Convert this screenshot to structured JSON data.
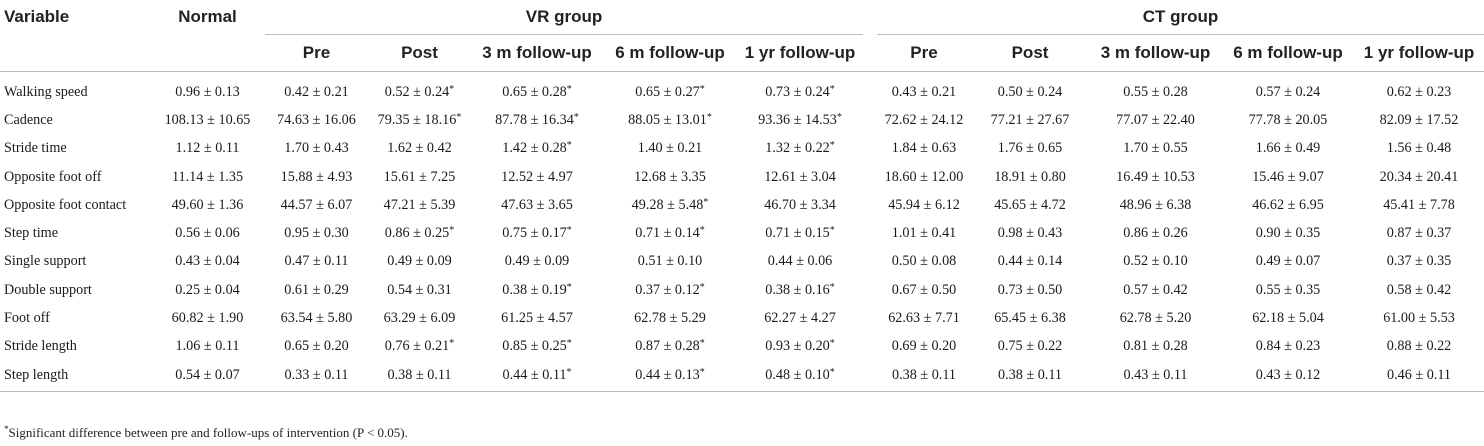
{
  "header": {
    "variable": "Variable",
    "normal": "Normal",
    "vr_group": "VR group",
    "ct_group": "CT group",
    "sub": [
      "Pre",
      "Post",
      "3 m follow-up",
      "6 m follow-up",
      "1 yr follow-up"
    ]
  },
  "rows": [
    {
      "name": "Walking speed",
      "normal": "0.96 ± 0.13",
      "vr": [
        "0.42 ± 0.21",
        "0.52 ± 0.24*",
        "0.65 ± 0.28*",
        "0.65 ± 0.27*",
        "0.73 ± 0.24*"
      ],
      "ct": [
        "0.43 ± 0.21",
        "0.50 ± 0.24",
        "0.55 ± 0.28",
        "0.57 ± 0.24",
        "0.62 ± 0.23"
      ]
    },
    {
      "name": "Cadence",
      "normal": "108.13 ± 10.65",
      "vr": [
        "74.63 ± 16.06",
        "79.35 ± 18.16*",
        "87.78 ± 16.34*",
        "88.05 ± 13.01*",
        "93.36 ± 14.53*"
      ],
      "ct": [
        "72.62 ± 24.12",
        "77.21 ± 27.67",
        "77.07 ± 22.40",
        "77.78 ± 20.05",
        "82.09 ± 17.52"
      ]
    },
    {
      "name": "Stride time",
      "normal": "1.12 ± 0.11",
      "vr": [
        "1.70 ± 0.43",
        "1.62 ± 0.42",
        "1.42 ± 0.28*",
        "1.40 ± 0.21",
        "1.32 ± 0.22*"
      ],
      "ct": [
        "1.84 ± 0.63",
        "1.76 ± 0.65",
        "1.70 ± 0.55",
        "1.66 ± 0.49",
        "1.56 ± 0.48"
      ]
    },
    {
      "name": "Opposite foot off",
      "normal": "11.14 ± 1.35",
      "vr": [
        "15.88 ± 4.93",
        "15.61 ± 7.25",
        "12.52 ± 4.97",
        "12.68 ± 3.35",
        "12.61 ± 3.04"
      ],
      "ct": [
        "18.60 ± 12.00",
        "18.91 ± 0.80",
        "16.49 ± 10.53",
        "15.46 ± 9.07",
        "20.34 ± 20.41"
      ]
    },
    {
      "name": "Opposite foot contact",
      "normal": "49.60 ± 1.36",
      "vr": [
        "44.57 ± 6.07",
        "47.21 ± 5.39",
        "47.63 ± 3.65",
        "49.28 ± 5.48*",
        "46.70 ± 3.34"
      ],
      "ct": [
        "45.94 ± 6.12",
        "45.65 ± 4.72",
        "48.96 ± 6.38",
        "46.62 ± 6.95",
        "45.41 ± 7.78"
      ]
    },
    {
      "name": "Step time",
      "normal": "0.56 ± 0.06",
      "vr": [
        "0.95 ± 0.30",
        "0.86 ± 0.25*",
        "0.75 ± 0.17*",
        "0.71 ± 0.14*",
        "0.71 ± 0.15*"
      ],
      "ct": [
        "1.01 ± 0.41",
        "0.98 ± 0.43",
        "0.86 ± 0.26",
        "0.90 ± 0.35",
        "0.87 ± 0.37"
      ]
    },
    {
      "name": "Single support",
      "normal": "0.43 ± 0.04",
      "vr": [
        "0.47 ± 0.11",
        "0.49 ± 0.09",
        "0.49 ± 0.09",
        "0.51 ± 0.10",
        "0.44 ± 0.06"
      ],
      "ct": [
        "0.50 ± 0.08",
        "0.44 ± 0.14",
        "0.52 ± 0.10",
        "0.49 ± 0.07",
        "0.37 ± 0.35"
      ]
    },
    {
      "name": "Double support",
      "normal": "0.25 ± 0.04",
      "vr": [
        "0.61 ± 0.29",
        "0.54 ± 0.31",
        "0.38 ± 0.19*",
        "0.37 ± 0.12*",
        "0.38 ± 0.16*"
      ],
      "ct": [
        "0.67 ± 0.50",
        "0.73 ± 0.50",
        "0.57 ± 0.42",
        "0.55 ± 0.35",
        "0.58 ± 0.42"
      ]
    },
    {
      "name": "Foot off",
      "normal": "60.82 ± 1.90",
      "vr": [
        "63.54 ± 5.80",
        "63.29 ± 6.09",
        "61.25 ± 4.57",
        "62.78 ± 5.29",
        "62.27 ± 4.27"
      ],
      "ct": [
        "62.63 ± 7.71",
        "65.45 ± 6.38",
        "62.78 ± 5.20",
        "62.18 ± 5.04",
        "61.00 ± 5.53"
      ]
    },
    {
      "name": "Stride length",
      "normal": "1.06 ± 0.11",
      "vr": [
        "0.65 ± 0.20",
        "0.76 ± 0.21*",
        "0.85 ± 0.25*",
        "0.87 ± 0.28*",
        "0.93 ± 0.20*"
      ],
      "ct": [
        "0.69 ± 0.20",
        "0.75 ± 0.22",
        "0.81 ± 0.28",
        "0.84 ± 0.23",
        "0.88 ± 0.22"
      ]
    },
    {
      "name": "Step length",
      "normal": "0.54 ± 0.07",
      "vr": [
        "0.33 ± 0.11",
        "0.38 ± 0.11",
        "0.44 ± 0.11*",
        "0.44 ± 0.13*",
        "0.48 ± 0.10*"
      ],
      "ct": [
        "0.38 ± 0.11",
        "0.38 ± 0.11",
        "0.43 ± 0.11",
        "0.43 ± 0.12",
        "0.46 ± 0.11"
      ]
    }
  ],
  "footnote": {
    "marker": "*",
    "text": "Significant difference between pre and follow-ups of intervention (P < 0.05)."
  }
}
